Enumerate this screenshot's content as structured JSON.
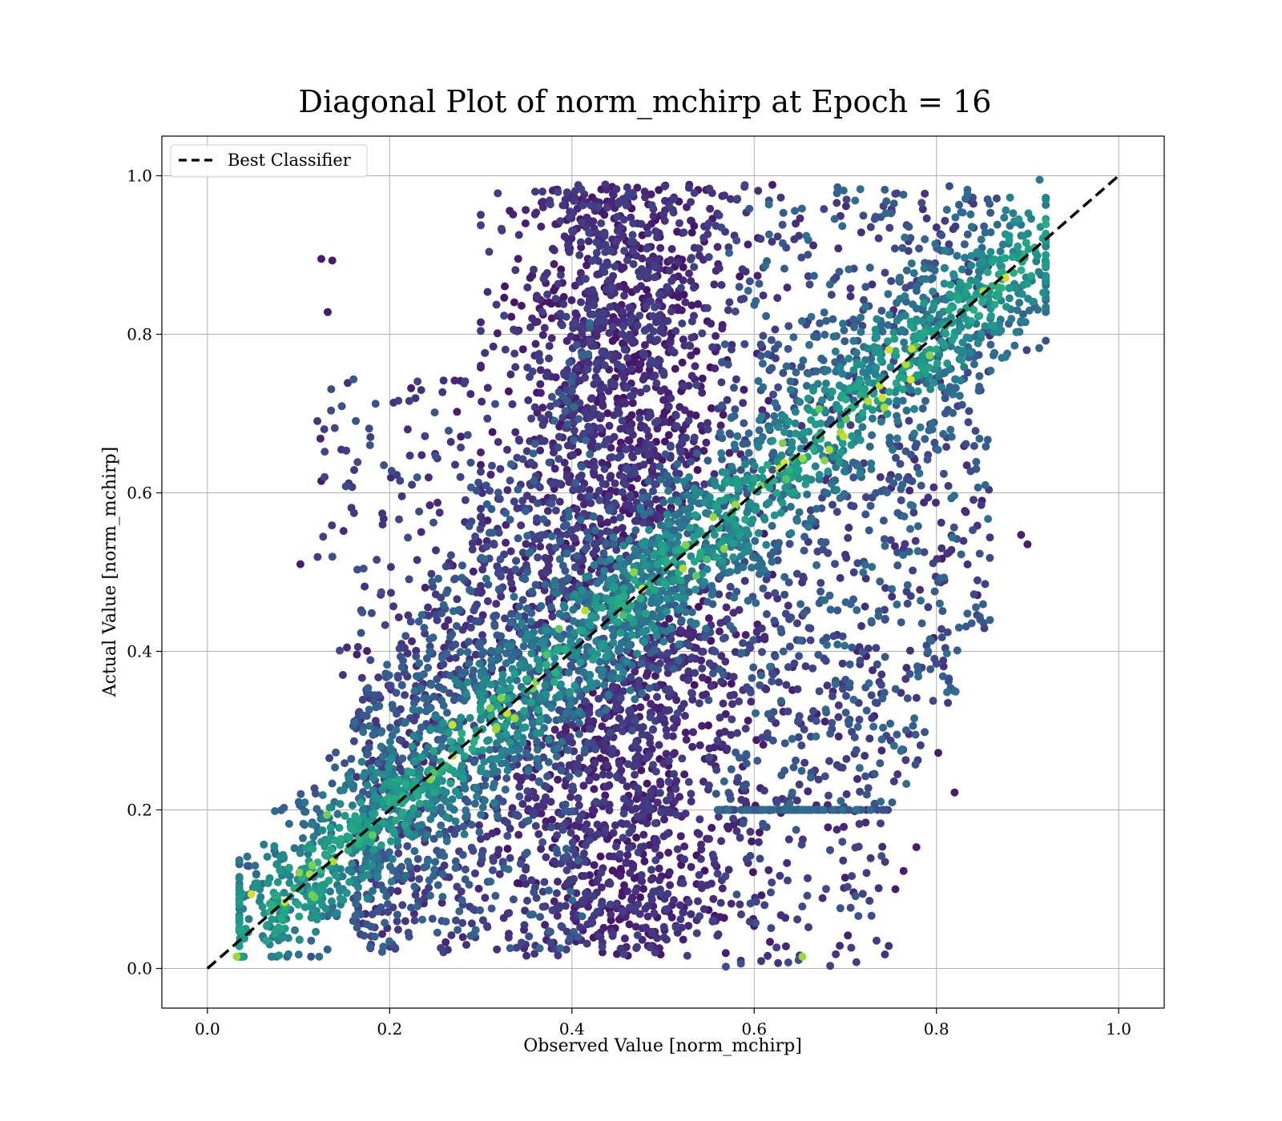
{
  "chart_data": {
    "type": "scatter",
    "title": "Diagonal Plot of norm_mchirp at Epoch = 16",
    "xlabel": "Observed Value [norm_mchirp]",
    "ylabel": "Actual Value [norm_mchirp]",
    "xlim": [
      -0.05,
      1.05
    ],
    "ylim": [
      -0.05,
      1.05
    ],
    "x_ticks": [
      "0.0",
      "0.2",
      "0.4",
      "0.6",
      "0.8",
      "1.0"
    ],
    "y_ticks": [
      "0.0",
      "0.2",
      "0.4",
      "0.6",
      "0.8",
      "1.0"
    ],
    "x_tick_values": [
      0.0,
      0.2,
      0.4,
      0.6,
      0.8,
      1.0
    ],
    "y_tick_values": [
      0.0,
      0.2,
      0.4,
      0.6,
      0.8,
      1.0
    ],
    "grid": true,
    "legend_position": "top-left",
    "colormap": "viridis",
    "series": [
      {
        "name": "Best Classifier",
        "kind": "dashed-line",
        "color": "#000000",
        "x": [
          0.0,
          1.0
        ],
        "y": [
          0.0,
          1.0
        ]
      },
      {
        "kind": "scatter-clusters",
        "clusters": [
          {
            "label": "diagonal-band",
            "x_range": [
              0.04,
              0.92
            ],
            "y_relation": "near y=x",
            "spread": 0.07,
            "density": "high",
            "color_level": "medium-high"
          },
          {
            "label": "central-vertical-blob",
            "x_range": [
              0.33,
              0.58
            ],
            "y_range": [
              0.02,
              0.99
            ],
            "density": "very high",
            "color_level": "low"
          },
          {
            "label": "left-lower-spread",
            "x_range": [
              0.2,
              0.4
            ],
            "y_range": [
              0.02,
              0.8
            ],
            "density": "medium",
            "color_level": "low-medium"
          },
          {
            "label": "right-upper-spread",
            "x_range": [
              0.55,
              0.9
            ],
            "y_range": [
              0.3,
              0.99
            ],
            "density": "medium",
            "color_level": "low-medium"
          }
        ],
        "outliers": [
          {
            "x": 0.125,
            "y": 0.895
          },
          {
            "x": 0.137,
            "y": 0.893
          },
          {
            "x": 0.132,
            "y": 0.828
          },
          {
            "x": 0.125,
            "y": 0.615
          },
          {
            "x": 0.893,
            "y": 0.547
          },
          {
            "x": 0.9,
            "y": 0.535
          },
          {
            "x": 0.845,
            "y": 0.471
          },
          {
            "x": 0.797,
            "y": 0.417
          },
          {
            "x": 0.82,
            "y": 0.222
          },
          {
            "x": 0.802,
            "y": 0.272
          },
          {
            "x": 0.653,
            "y": 0.015
          },
          {
            "x": 0.755,
            "y": 0.1
          },
          {
            "x": 0.102,
            "y": 0.51
          },
          {
            "x": 0.85,
            "y": 0.59
          },
          {
            "x": 0.806,
            "y": 0.517
          },
          {
            "x": 0.778,
            "y": 0.153
          },
          {
            "x": 0.764,
            "y": 0.123
          },
          {
            "x": 0.032,
            "y": 0.015
          }
        ]
      }
    ]
  },
  "colors": {
    "viridis_low": "#440154",
    "viridis_mid": "#3b528b",
    "viridis_teal": "#21908d",
    "viridis_green": "#5dc963",
    "viridis_high": "#fde725",
    "grid": "#b0b0b0"
  }
}
